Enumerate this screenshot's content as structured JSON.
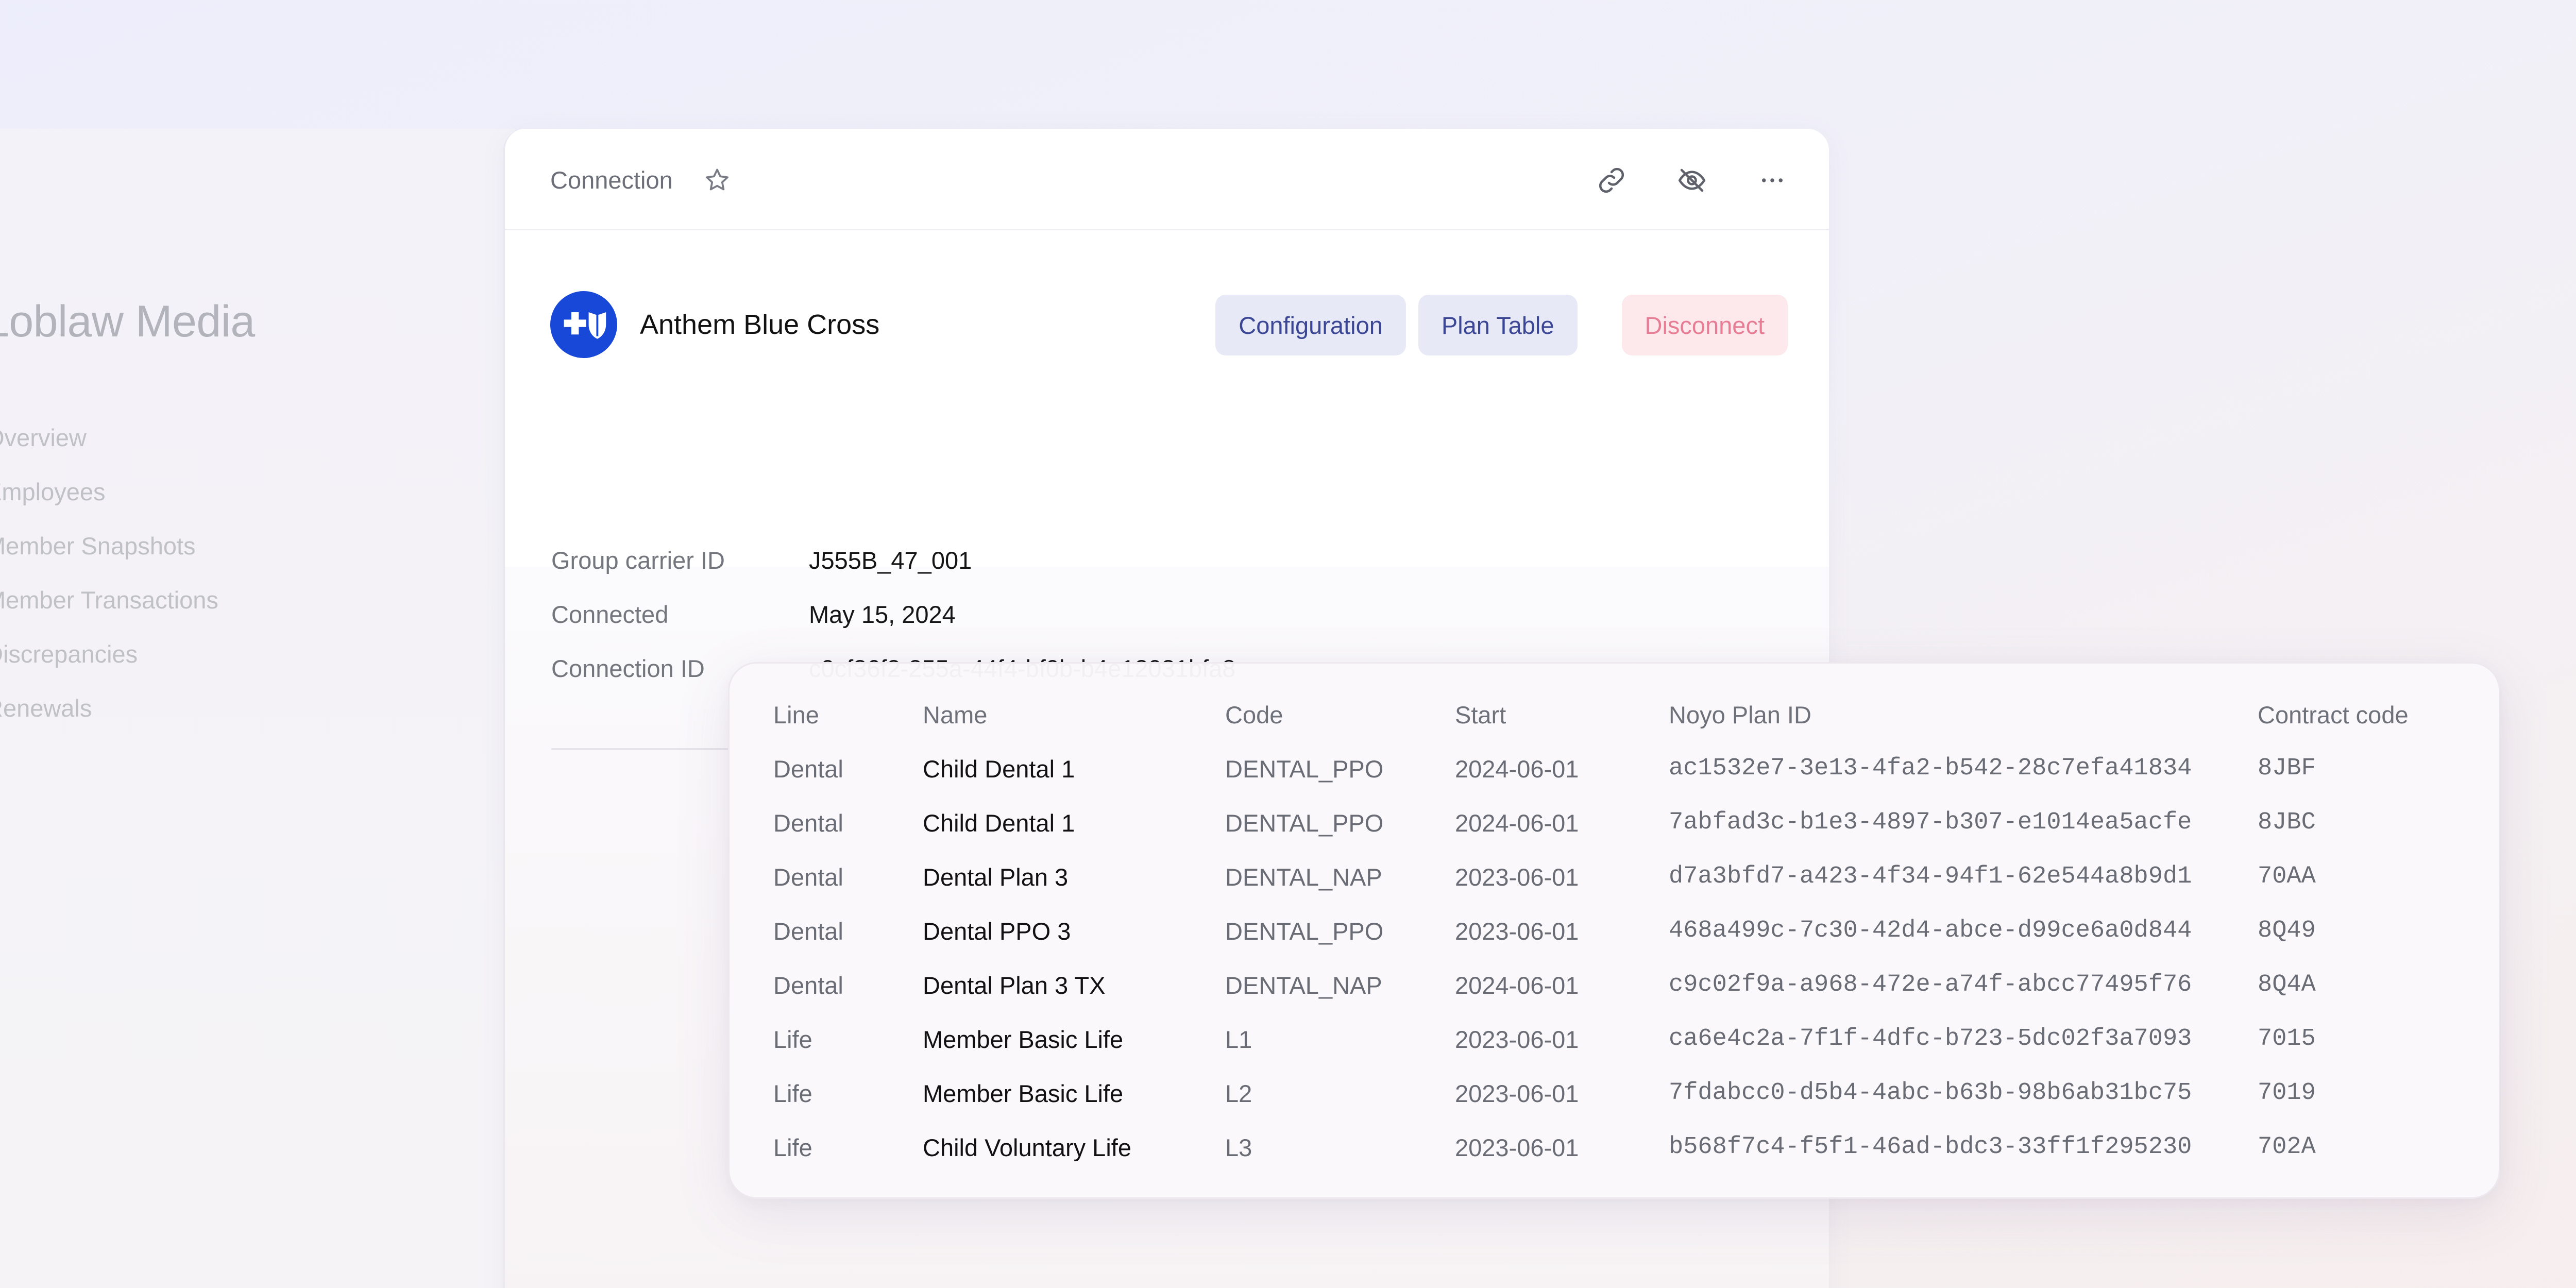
{
  "sidebar": {
    "org_name": "Loblaw Media",
    "items": [
      {
        "label": "Overview"
      },
      {
        "label": "Employees"
      },
      {
        "label": "Member Snapshots"
      },
      {
        "label": "Member Transactions"
      },
      {
        "label": "Discrepancies"
      },
      {
        "label": "Renewals"
      }
    ]
  },
  "header": {
    "breadcrumb": "Connection",
    "icons": [
      "star-icon",
      "link-icon",
      "eye-off-icon",
      "more-horizontal-icon"
    ]
  },
  "carrier": {
    "name": "Anthem Blue Cross",
    "logo_color": "#1848d8"
  },
  "actions": {
    "configuration": "Configuration",
    "plan_table": "Plan Table",
    "disconnect": "Disconnect"
  },
  "details": [
    {
      "key": "Group carrier ID",
      "value": "J555B_47_001"
    },
    {
      "key": "Connected",
      "value": "May 15, 2024"
    },
    {
      "key": "Connection ID",
      "value": "c0cf36f2-255a-44f4-bf0b-b4e12031bfa8"
    }
  ],
  "plan_table": {
    "headers": [
      "Line",
      "Name",
      "Code",
      "Start",
      "Noyo Plan ID",
      "Contract code"
    ],
    "rows": [
      {
        "line": "Dental",
        "name": "Child Dental 1",
        "code": "DENTAL_PPO",
        "start": "2024-06-01",
        "plan_id": "ac1532e7-3e13-4fa2-b542-28c7efa41834",
        "contract": "8JBF"
      },
      {
        "line": "Dental",
        "name": "Child Dental 1",
        "code": "DENTAL_PPO",
        "start": "2024-06-01",
        "plan_id": "7abfad3c-b1e3-4897-b307-e1014ea5acfe",
        "contract": "8JBC"
      },
      {
        "line": "Dental",
        "name": "Dental Plan 3",
        "code": "DENTAL_NAP",
        "start": "2023-06-01",
        "plan_id": "d7a3bfd7-a423-4f34-94f1-62e544a8b9d1",
        "contract": "70AA"
      },
      {
        "line": "Dental",
        "name": "Dental PPO 3",
        "code": "DENTAL_PPO",
        "start": "2023-06-01",
        "plan_id": "468a499c-7c30-42d4-abce-d99ce6a0d844",
        "contract": "8Q49"
      },
      {
        "line": "Dental",
        "name": "Dental Plan 3 TX",
        "code": "DENTAL_NAP",
        "start": "2024-06-01",
        "plan_id": "c9c02f9a-a968-472e-a74f-abcc77495f76",
        "contract": "8Q4A"
      },
      {
        "line": "Life",
        "name": "Member Basic Life",
        "code": "L1",
        "start": "2023-06-01",
        "plan_id": "ca6e4c2a-7f1f-4dfc-b723-5dc02f3a7093",
        "contract": "7015"
      },
      {
        "line": "Life",
        "name": "Member Basic Life",
        "code": "L2",
        "start": "2023-06-01",
        "plan_id": "7fdabcc0-d5b4-4abc-b63b-98b6ab31bc75",
        "contract": "7019"
      },
      {
        "line": "Life",
        "name": "Child Voluntary Life",
        "code": "L3",
        "start": "2023-06-01",
        "plan_id": "b568f7c4-f5f1-46ad-bdc3-33ff1f295230",
        "contract": "702A"
      }
    ]
  },
  "colors": {
    "accent": "#3b4794",
    "disconnect": "#e77d95",
    "carrier_blue": "#1848d8"
  }
}
